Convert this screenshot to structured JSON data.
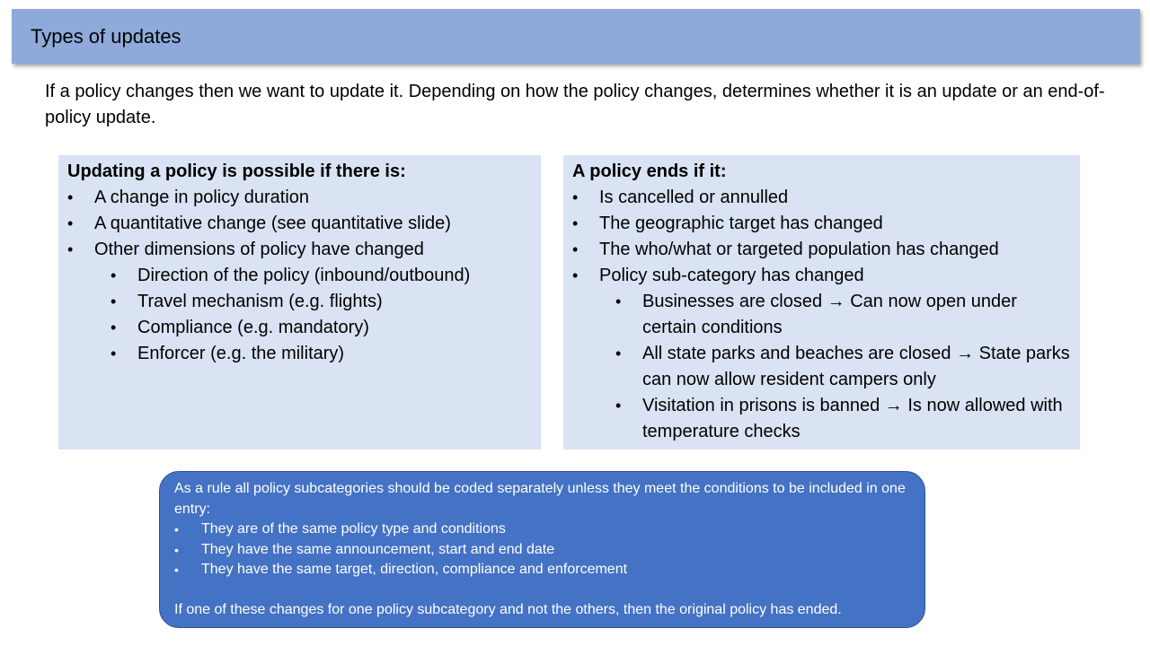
{
  "title": "Types of updates",
  "intro": "If a policy changes then we want to update it. Depending on how the policy changes, determines whether it is an update or an end-of-policy update.",
  "left_panel": {
    "heading": "Updating a policy is possible if there is:",
    "items": [
      "A change in policy duration",
      "A quantitative change (see quantitative slide)",
      "Other dimensions of policy have changed"
    ],
    "sub_items": [
      "Direction of the policy (inbound/outbound)",
      "Travel mechanism (e.g. flights)",
      "Compliance (e.g. mandatory)",
      "Enforcer (e.g. the military)"
    ]
  },
  "right_panel": {
    "heading": "A policy ends if it:",
    "items": [
      "Is cancelled or annulled",
      "The geographic target has changed",
      "The who/what or targeted population has changed",
      "Policy sub-category has changed"
    ],
    "sub_items": [
      "Businesses are closed → Can now open under certain conditions",
      "All state parks and beaches are closed → State parks can now allow resident campers only",
      "Visitation in prisons is banned → Is now allowed with temperature checks"
    ]
  },
  "note": {
    "intro": "As a rule all policy subcategories should be coded separately unless they meet the conditions to be included in one entry:",
    "items": [
      "They are of the same policy type and conditions",
      "They have the same announcement, start and end date",
      "They have the same target, direction, compliance and enforcement"
    ],
    "conclusion": "If one of these changes for one policy subcategory and not the others, then the original policy has ended."
  },
  "bullet_char": "•"
}
